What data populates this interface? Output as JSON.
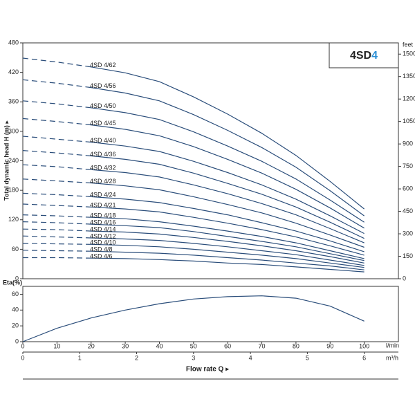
{
  "chart_data": [
    {
      "type": "line",
      "y_label": "Total dynamic head H (m) ▸",
      "y2_label": "feet",
      "badge": {
        "text": "4SD",
        "highlight": "4"
      },
      "x": [
        0,
        10,
        20,
        30,
        40,
        50,
        60,
        70,
        80,
        90,
        100
      ],
      "xlim": [
        0,
        110
      ],
      "ylim": [
        0,
        480
      ],
      "yticks": [
        0,
        60,
        120,
        180,
        240,
        300,
        360,
        420,
        480
      ],
      "y2lim": [
        0,
        1575
      ],
      "y2ticks": [
        0,
        150,
        300,
        450,
        600,
        750,
        900,
        1050,
        1200,
        1350,
        1500
      ],
      "color": "#2a4d7a",
      "series": [
        {
          "name": "4SD 4/62",
          "values": [
            449,
            441,
            431,
            419,
            401,
            370,
            335,
            296,
            251,
            198,
            142
          ]
        },
        {
          "name": "4SD 4/56",
          "values": [
            405,
            398,
            389,
            378,
            362,
            334,
            302,
            267,
            227,
            179,
            128
          ]
        },
        {
          "name": "4SD 4/50",
          "values": [
            362,
            356,
            348,
            338,
            324,
            299,
            270,
            239,
            203,
            160,
            115
          ]
        },
        {
          "name": "4SD 4/45",
          "values": [
            326,
            320,
            313,
            304,
            291,
            269,
            243,
            215,
            182,
            144,
            103
          ]
        },
        {
          "name": "4SD 4/40",
          "values": [
            290,
            284,
            278,
            270,
            259,
            239,
            216,
            191,
            162,
            128,
            92
          ]
        },
        {
          "name": "4SD 4/36",
          "values": [
            261,
            256,
            250,
            243,
            233,
            215,
            194,
            172,
            146,
            115,
            82
          ]
        },
        {
          "name": "4SD 4/32",
          "values": [
            232,
            228,
            222,
            216,
            207,
            191,
            173,
            153,
            130,
            102,
            73
          ]
        },
        {
          "name": "4SD 4/28",
          "values": [
            203,
            199,
            195,
            189,
            181,
            167,
            151,
            134,
            113,
            89,
            64
          ]
        },
        {
          "name": "4SD 4/24",
          "values": [
            174,
            171,
            167,
            162,
            155,
            143,
            130,
            114,
            97,
            77,
            55
          ]
        },
        {
          "name": "4SD 4/21",
          "values": [
            152,
            149,
            146,
            142,
            136,
            125,
            113,
            100,
            85,
            67,
            48
          ]
        },
        {
          "name": "4SD 4/18",
          "values": [
            130,
            128,
            125,
            122,
            116,
            107,
            97,
            86,
            73,
            57,
            41
          ]
        },
        {
          "name": "4SD 4/16",
          "values": [
            116,
            114,
            111,
            108,
            104,
            96,
            86,
            76,
            65,
            51,
            37
          ]
        },
        {
          "name": "4SD 4/14",
          "values": [
            101,
            100,
            97,
            95,
            91,
            84,
            76,
            67,
            57,
            45,
            32
          ]
        },
        {
          "name": "4SD 4/12",
          "values": [
            87,
            85,
            83,
            81,
            78,
            72,
            65,
            57,
            49,
            38,
            27
          ]
        },
        {
          "name": "4SD 4/10",
          "values": [
            72,
            71,
            70,
            68,
            65,
            60,
            54,
            48,
            41,
            32,
            23
          ]
        },
        {
          "name": "4SD 4/8",
          "values": [
            58,
            57,
            56,
            54,
            52,
            48,
            43,
            38,
            32,
            26,
            18
          ]
        },
        {
          "name": "4SD 4/6",
          "values": [
            43,
            43,
            42,
            41,
            39,
            36,
            32,
            29,
            24,
            19,
            14
          ]
        }
      ]
    },
    {
      "type": "line",
      "y_label": "Eta(%)",
      "x_label": "Flow rate  Q  ▸",
      "x_unit": "l/min",
      "x2_unit": "m³/h",
      "x": [
        0,
        10,
        20,
        30,
        40,
        50,
        60,
        70,
        80,
        90,
        100
      ],
      "xlim": [
        0,
        110
      ],
      "xticks": [
        0,
        10,
        20,
        30,
        40,
        50,
        60,
        70,
        80,
        90,
        100
      ],
      "x2lim": [
        0,
        6.6
      ],
      "x2ticks": [
        0,
        1,
        2,
        3,
        4,
        5,
        6
      ],
      "ylim": [
        0,
        70
      ],
      "yticks": [
        0,
        20,
        40,
        60
      ],
      "color": "#2a4d7a",
      "series": [
        {
          "values": [
            0,
            17,
            30,
            40,
            48,
            54,
            57,
            58,
            55,
            45,
            26
          ]
        }
      ]
    }
  ]
}
